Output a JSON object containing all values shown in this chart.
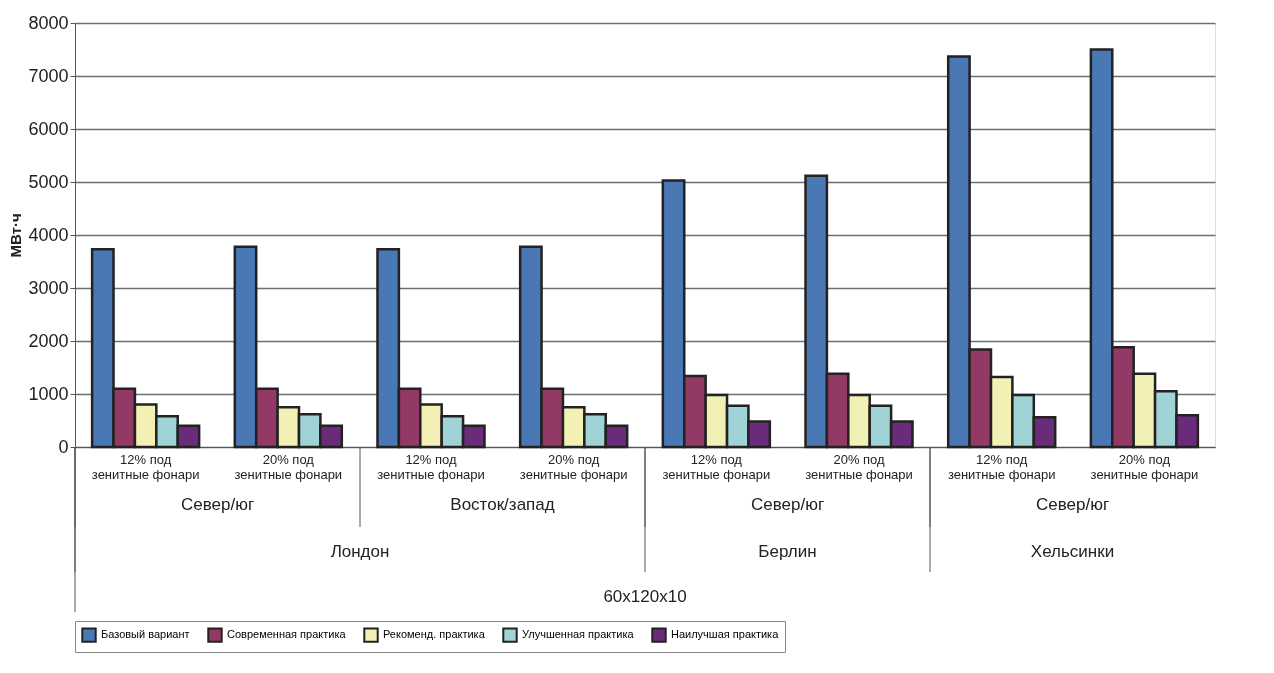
{
  "chart_data": {
    "type": "bar",
    "ylabel": "МВт·ч",
    "categories": [
      "12% под зенитные фонари",
      "20% под зенитные фонари",
      "12% под зенитные фонари",
      "20% под зенитные фонари",
      "12% под зенитные фонари",
      "20% под зенитные фонари",
      "12% под зенитные фонари",
      "20% под зенитные фонари"
    ],
    "series": [
      {
        "name": "Базовый вариант",
        "color": "#4a78b4",
        "values": [
          3730,
          3780,
          3730,
          3780,
          5030,
          5120,
          7370,
          7500
        ]
      },
      {
        "name": "Современная практика",
        "color": "#933966",
        "values": [
          1100,
          1100,
          1100,
          1100,
          1340,
          1380,
          1840,
          1880
        ]
      },
      {
        "name": "Рекоменд. практика",
        "color": "#f3f0b6",
        "values": [
          800,
          750,
          800,
          750,
          980,
          980,
          1320,
          1380
        ]
      },
      {
        "name": "Улучшенная практика",
        "color": "#9fd3d6",
        "values": [
          580,
          620,
          580,
          620,
          780,
          780,
          980,
          1050
        ]
      },
      {
        "name": "Наилучшая практика",
        "color": "#6a2c7a",
        "values": [
          400,
          400,
          400,
          400,
          480,
          480,
          560,
          600
        ]
      }
    ],
    "ylim": [
      0,
      8000
    ],
    "yticks": [
      0,
      1000,
      2000,
      3000,
      4000,
      5000,
      6000,
      7000,
      8000
    ],
    "grid": "y",
    "legend": "bottom",
    "annotations": [
      "Север/юг",
      "Восток/запад",
      "Север/юг",
      "Север/юг",
      "Лондон",
      "Берлин",
      "Хельсинки",
      "60x120x10"
    ]
  }
}
